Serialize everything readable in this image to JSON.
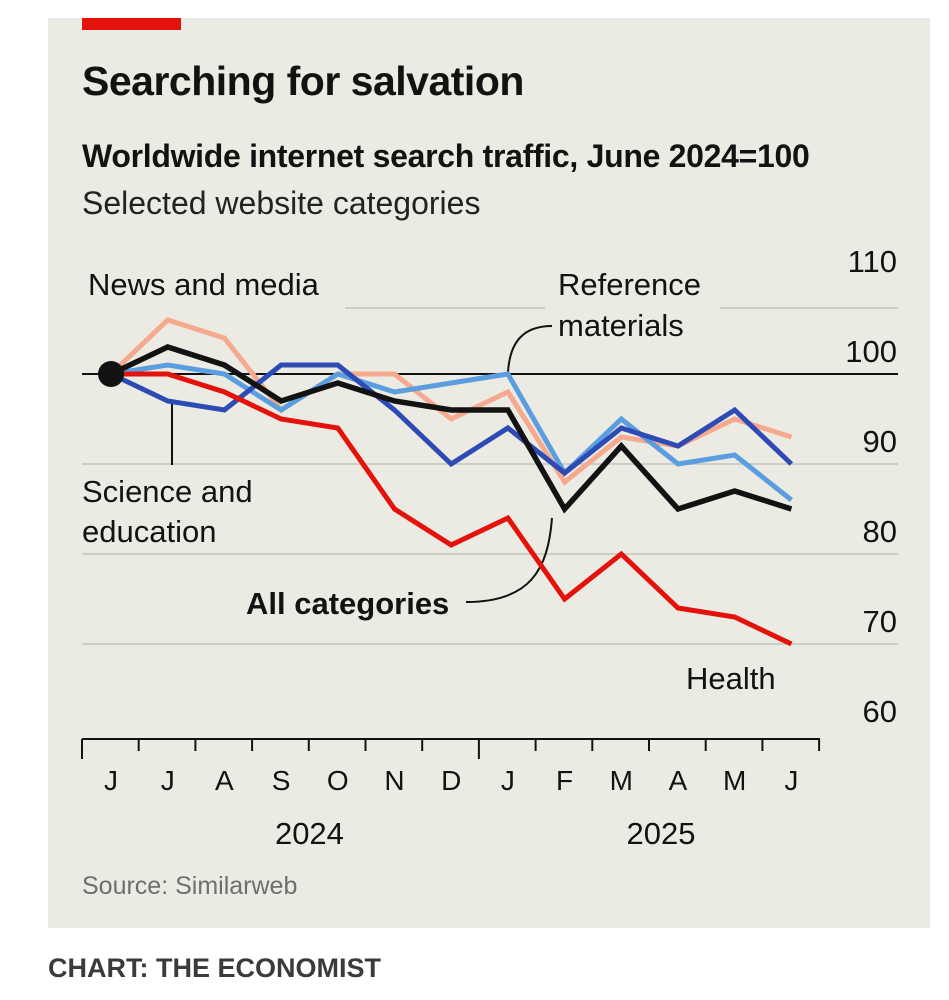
{
  "header": {
    "title": "Searching for salvation",
    "subtitle": "Worldwide internet search traffic, June 2024=100",
    "subsubtitle": "Selected website categories"
  },
  "footer": {
    "source": "Source: Similarweb",
    "credit": "CHART: THE ECONOMIST"
  },
  "colors": {
    "accent": "#e3120b",
    "background": "#ecebe3",
    "news": "#f5a98f",
    "reference": "#5b9ee0",
    "science": "#2d4bb5",
    "all": "#121212",
    "health": "#e3120b"
  },
  "chart_data": {
    "type": "line",
    "title": "Searching for salvation",
    "subtitle": "Worldwide internet search traffic, June 2024=100",
    "x": [
      "J",
      "J",
      "A",
      "S",
      "O",
      "N",
      "D",
      "J",
      "F",
      "M",
      "A",
      "M",
      "J"
    ],
    "year_labels": [
      {
        "label": "2024",
        "index": 3.5
      },
      {
        "label": "2025",
        "index": 9.7
      }
    ],
    "ylim": [
      60,
      110
    ],
    "yticks": [
      110,
      100,
      90,
      80,
      70,
      60
    ],
    "baseline": 100,
    "series": [
      {
        "name": "News and media",
        "color": "#f5a98f",
        "values": [
          100,
          106,
          104,
          96,
          100,
          100,
          95,
          98,
          88,
          93,
          92,
          95,
          93
        ]
      },
      {
        "name": "Reference materials",
        "color": "#5b9ee0",
        "values": [
          100,
          101,
          100,
          96,
          100,
          98,
          99,
          100,
          89,
          95,
          90,
          91,
          86
        ]
      },
      {
        "name": "Science and education",
        "color": "#2d4bb5",
        "values": [
          100,
          97,
          96,
          101,
          101,
          96,
          90,
          94,
          89,
          94,
          92,
          96,
          90
        ]
      },
      {
        "name": "All categories",
        "color": "#121212",
        "values": [
          100,
          103,
          101,
          97,
          99,
          97,
          96,
          96,
          85,
          92,
          85,
          87,
          85
        ]
      },
      {
        "name": "Health",
        "color": "#e3120b",
        "values": [
          100,
          100,
          98,
          95,
          94,
          85,
          81,
          84,
          75,
          80,
          74,
          73,
          70
        ]
      }
    ],
    "annotations": [
      {
        "text": "News and media"
      },
      {
        "text_lines": [
          "Reference",
          "materials"
        ]
      },
      {
        "text_lines": [
          "Science and",
          "education"
        ]
      },
      {
        "text": "All categories"
      },
      {
        "text": "Health"
      }
    ]
  }
}
